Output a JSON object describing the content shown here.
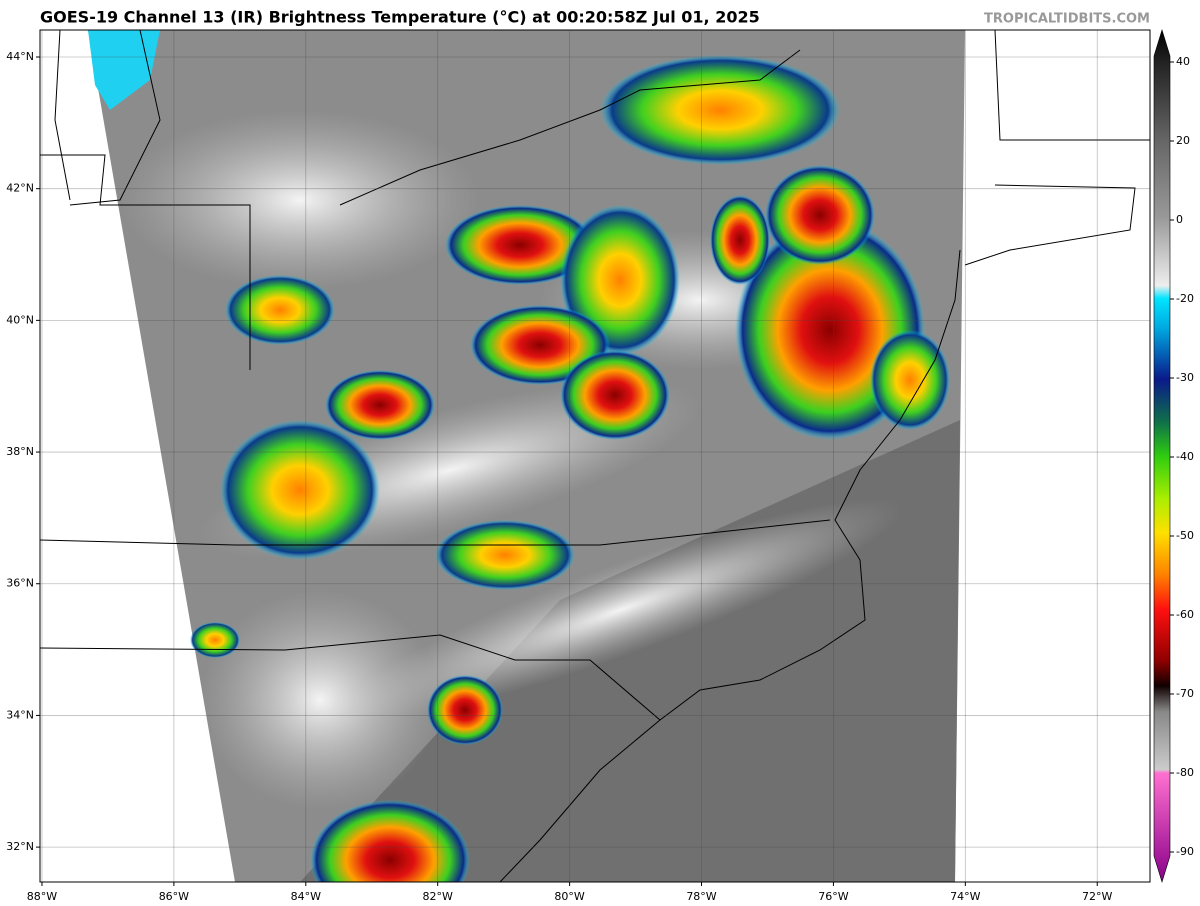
{
  "header": {
    "title": "GOES-19 Channel 13 (IR) Brightness Temperature (°C) at 00:20:58Z Jul 01, 2025",
    "credit": "TROPICALTIDBITS.COM"
  },
  "map": {
    "xlim": [
      -88.03,
      -71.2
    ],
    "ylim": [
      31.47,
      44.41
    ],
    "grid": true,
    "xticks": [
      {
        "value": -88,
        "label": "88°W"
      },
      {
        "value": -86,
        "label": "86°W"
      },
      {
        "value": -84,
        "label": "84°W"
      },
      {
        "value": -82,
        "label": "82°W"
      },
      {
        "value": -80,
        "label": "80°W"
      },
      {
        "value": -78,
        "label": "78°W"
      },
      {
        "value": -76,
        "label": "76°W"
      },
      {
        "value": -74,
        "label": "74°W"
      },
      {
        "value": -72,
        "label": "72°W"
      }
    ],
    "yticks": [
      {
        "value": 32,
        "label": "32°N"
      },
      {
        "value": 34,
        "label": "34°N"
      },
      {
        "value": 36,
        "label": "36°N"
      },
      {
        "value": 38,
        "label": "38°N"
      },
      {
        "value": 40,
        "label": "40°N"
      },
      {
        "value": 42,
        "label": "42°N"
      },
      {
        "value": 44,
        "label": "44°N"
      }
    ]
  },
  "colorbar": {
    "ticks": [
      40,
      20,
      0,
      -20,
      -30,
      -40,
      -50,
      -60,
      -70,
      -80,
      -90
    ]
  }
}
